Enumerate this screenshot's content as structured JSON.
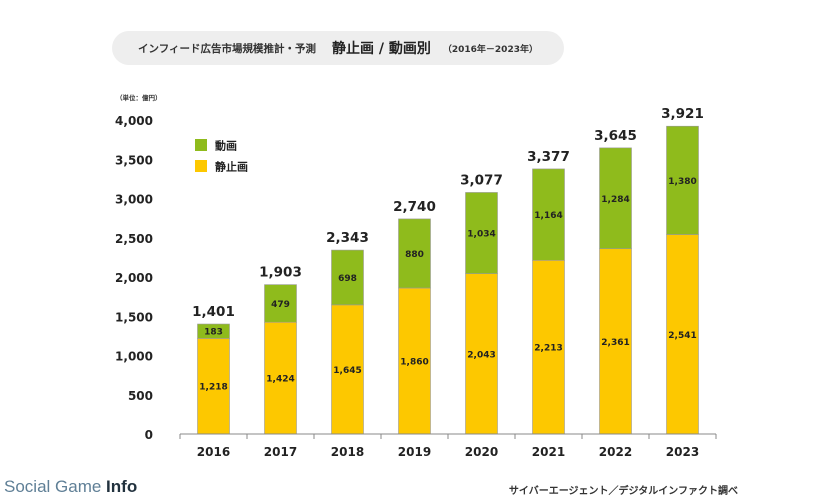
{
  "title": {
    "prefix": "インフィード広告市場規模推計・予測",
    "main": "静止画 / 動画別",
    "period": "（2016年－2023年）"
  },
  "source": "サイバーエージェント／デジタルインファクト調べ",
  "watermark": {
    "part1": "Social Game ",
    "part2": "Info"
  },
  "chart_data": {
    "type": "bar",
    "stacked": true,
    "unit_label": "（単位：億円）",
    "categories": [
      "2016",
      "2017",
      "2018",
      "2019",
      "2020",
      "2021",
      "2022",
      "2023"
    ],
    "series": [
      {
        "name": "静止画",
        "color": "#fdc800",
        "values": [
          1218,
          1424,
          1645,
          1860,
          2043,
          2213,
          2361,
          2541
        ]
      },
      {
        "name": "動画",
        "color": "#8fbb1c",
        "values": [
          183,
          479,
          698,
          880,
          1034,
          1164,
          1284,
          1380
        ]
      }
    ],
    "totals": [
      1401,
      1903,
      2343,
      2740,
      3077,
      3377,
      3645,
      3921
    ],
    "legend_order": [
      "動画",
      "静止画"
    ],
    "legend_position": "top-left",
    "ylim": [
      0,
      4000
    ],
    "yticks": [
      0,
      500,
      1000,
      1500,
      2000,
      2500,
      3000,
      3500,
      4000
    ],
    "grid": false
  }
}
